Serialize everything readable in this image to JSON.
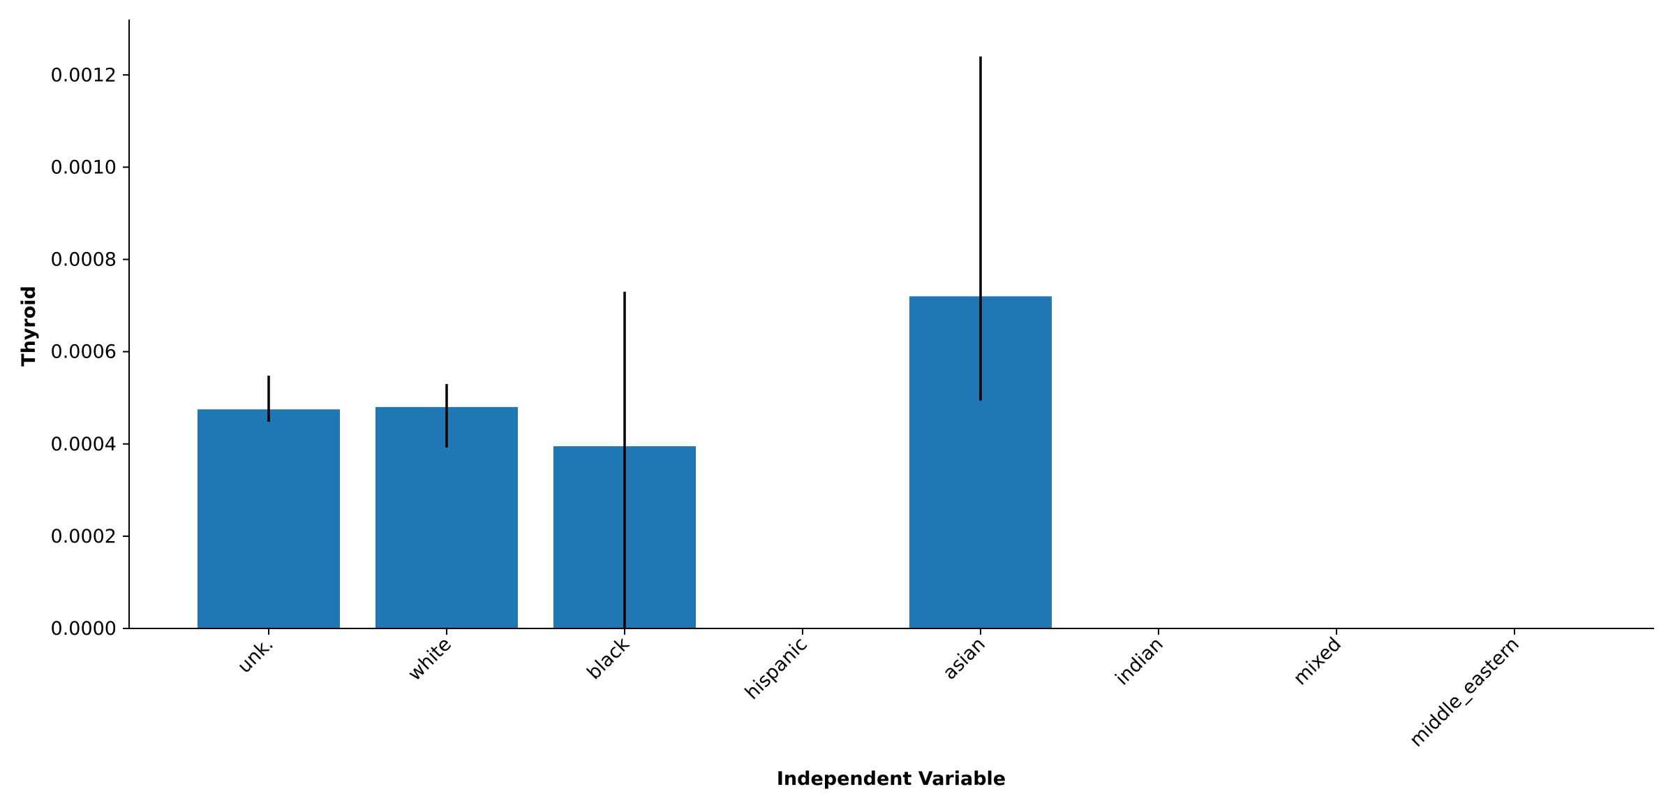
{
  "chart_data": {
    "type": "bar",
    "title": "",
    "xlabel": "Independent Variable",
    "ylabel": "Thyroid",
    "categories": [
      "unk.",
      "white",
      "black",
      "hispanic",
      "asian",
      "indian",
      "mixed",
      "middle_eastern"
    ],
    "values": [
      0.000475,
      0.00048,
      0.000395,
      0,
      0.00072,
      0,
      0,
      0
    ],
    "error_bars": [
      {
        "low": 0.000448,
        "high": 0.000548
      },
      {
        "low": 0.000392,
        "high": 0.00053
      },
      {
        "low": 0.0,
        "high": 0.00073
      },
      null,
      {
        "low": 0.000494,
        "high": 0.00124
      },
      null,
      null,
      null
    ],
    "ylim": [
      0,
      0.00132
    ],
    "yticks": [
      0.0,
      0.0002,
      0.0004,
      0.0006,
      0.0008,
      0.001,
      0.0012
    ],
    "ytick_labels": [
      "0.0000",
      "0.0002",
      "0.0004",
      "0.0006",
      "0.0008",
      "0.0010",
      "0.0012"
    ],
    "grid": false,
    "legend": "none",
    "bar_color": "#1f77b4",
    "error_color": "#000000"
  }
}
